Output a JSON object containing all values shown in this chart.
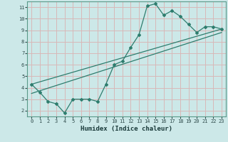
{
  "xlabel": "Humidex (Indice chaleur)",
  "ylabel": "",
  "background_color": "#cce8e8",
  "grid_color": "#d8b8b8",
  "line_color": "#2e7d6e",
  "xlim": [
    -0.5,
    23.5
  ],
  "ylim": [
    1.5,
    11.5
  ],
  "xticks": [
    0,
    1,
    2,
    3,
    4,
    5,
    6,
    7,
    8,
    9,
    10,
    11,
    12,
    13,
    14,
    15,
    16,
    17,
    18,
    19,
    20,
    21,
    22,
    23
  ],
  "yticks": [
    2,
    3,
    4,
    5,
    6,
    7,
    8,
    9,
    10,
    11
  ],
  "line1_x": [
    0,
    1,
    2,
    3,
    4,
    5,
    6,
    7,
    8,
    9,
    10,
    11,
    12,
    13,
    14,
    15,
    16,
    17,
    18,
    19,
    20,
    21,
    22,
    23
  ],
  "line1_y": [
    4.3,
    3.6,
    2.8,
    2.6,
    1.8,
    3.0,
    3.0,
    3.0,
    2.8,
    4.3,
    6.0,
    6.3,
    7.5,
    8.6,
    11.1,
    11.3,
    10.3,
    10.7,
    10.2,
    9.5,
    8.8,
    9.3,
    9.3,
    9.1
  ],
  "line2_x": [
    0,
    23
  ],
  "line2_y": [
    3.5,
    8.8
  ],
  "line3_x": [
    0,
    23
  ],
  "line3_y": [
    4.3,
    9.1
  ]
}
